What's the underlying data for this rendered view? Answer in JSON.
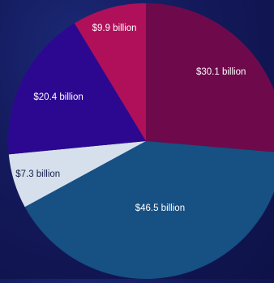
{
  "chart_data": {
    "type": "pie",
    "title": "",
    "slices": [
      {
        "label": "$30.1 billion",
        "value": 30.1,
        "color": "#6e0a4c",
        "text_color": "#ffffff"
      },
      {
        "label": "$46.5 billion",
        "value": 46.5,
        "color": "#175083",
        "text_color": "#ffffff"
      },
      {
        "label": "$7.3 billion",
        "value": 7.3,
        "color": "#d6e0ec",
        "text_color": "#15204d"
      },
      {
        "label": "$20.4 billion",
        "value": 20.4,
        "color": "#2c0891",
        "text_color": "#ffffff"
      },
      {
        "label": "$9.9 billion",
        "value": 9.9,
        "color": "#b0105a",
        "text_color": "#ffffff"
      }
    ],
    "start_angle": "top",
    "direction": "clockwise"
  }
}
